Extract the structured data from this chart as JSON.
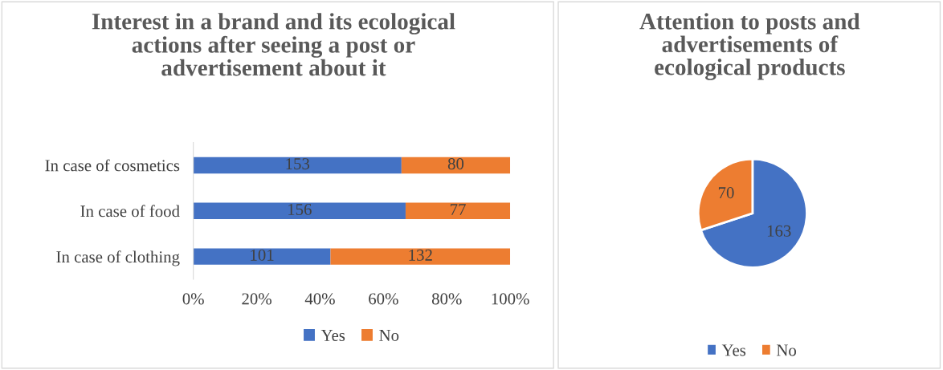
{
  "chart_data": [
    {
      "type": "bar",
      "orientation": "horizontal",
      "stacked": true,
      "title": "Interest in a brand and its ecological\nactions after seeing a post or\nadvertisement about it",
      "categories": [
        "In case of cosmetics",
        "In case of food",
        "In case of clothing"
      ],
      "xlim": [
        0,
        100
      ],
      "xticks": [
        {
          "value": 0,
          "label": "0%"
        },
        {
          "value": 20,
          "label": "20%"
        },
        {
          "value": 40,
          "label": "40%"
        },
        {
          "value": 60,
          "label": "60%"
        },
        {
          "value": 80,
          "label": "80%"
        },
        {
          "value": 100,
          "label": "100%"
        }
      ],
      "legend": "bottom",
      "annotations": [
        "153",
        "80",
        "156",
        "77",
        "101",
        "132"
      ],
      "series": [
        {
          "name": "Yes",
          "color": "#4472c4",
          "values": [
            65.7,
            67.0,
            43.3
          ]
        },
        {
          "name": "No",
          "color": "#ed7d31",
          "values": [
            34.3,
            33.0,
            56.7
          ]
        }
      ]
    },
    {
      "type": "pie",
      "title": "Attention to posts and\nadvertisements of\necological products",
      "categories": [
        "Yes",
        "No"
      ],
      "values": [
        163,
        70
      ],
      "colors": [
        "#4472c4",
        "#ed7d31"
      ],
      "data_labels": true,
      "legend": "bottom"
    }
  ]
}
